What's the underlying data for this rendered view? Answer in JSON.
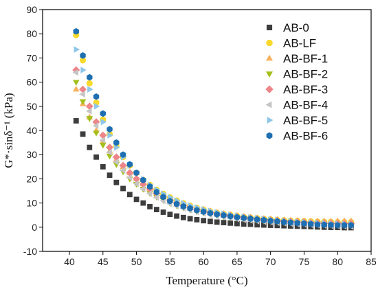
{
  "chart_data": {
    "type": "scatter",
    "title": "",
    "xlabel": "Temperature (°C)",
    "ylabel": "G*·sinδ⁻¹ (kPa)",
    "xlim": [
      36,
      85
    ],
    "ylim": [
      -10,
      90
    ],
    "xticks": [
      40,
      45,
      50,
      55,
      60,
      65,
      70,
      75,
      80,
      85
    ],
    "yticks": [
      -10,
      0,
      10,
      20,
      30,
      40,
      50,
      60,
      70,
      80,
      90
    ],
    "grid": false,
    "legend_position": "top-right",
    "x": [
      41,
      42,
      43,
      44,
      45,
      46,
      47,
      48,
      49,
      50,
      51,
      52,
      53,
      54,
      55,
      56,
      57,
      58,
      59,
      60,
      61,
      62,
      63,
      64,
      65,
      66,
      67,
      68,
      69,
      70,
      71,
      72,
      73,
      74,
      75,
      76,
      77,
      78,
      79,
      80,
      81,
      82
    ],
    "series": [
      {
        "name": "AB-0",
        "color": "#3d3d3d",
        "marker": "square",
        "values": [
          44,
          38.5,
          33,
          29,
          25,
          21.5,
          18.5,
          16,
          13.5,
          11.5,
          10,
          8.5,
          7.3,
          6.2,
          5.3,
          4.6,
          4,
          3.5,
          3.1,
          2.7,
          2.4,
          2.1,
          1.9,
          1.7,
          1.5,
          1.3,
          1.2,
          1,
          0.9,
          0.8,
          0.7,
          0.6,
          0.5,
          0.4,
          0.3,
          0.2,
          0.1,
          0,
          -0.1,
          -0.1,
          -0.2,
          -0.2
        ]
      },
      {
        "name": "AB-LF",
        "color": "#f8d92c",
        "marker": "circle",
        "values": [
          79.5,
          69,
          59.5,
          51.5,
          44.5,
          38.5,
          33.5,
          29,
          25.5,
          22.5,
          19.5,
          17.5,
          15.5,
          13.8,
          12.3,
          11,
          9.9,
          8.9,
          8,
          7.3,
          6.6,
          6,
          5.5,
          5.1,
          4.7,
          4.3,
          4,
          3.7,
          3.5,
          3.2,
          3,
          2.9,
          2.7,
          2.6,
          2.5,
          2.4,
          2.3,
          2.2,
          2.2,
          2.1,
          2.1,
          2.1
        ]
      },
      {
        "name": "AB-BF-1",
        "color": "#f8b15e",
        "marker": "triangle-up",
        "values": [
          57,
          51,
          45.5,
          40,
          35.5,
          31.5,
          28,
          25,
          22.5,
          20,
          18,
          16,
          14.5,
          13,
          11.8,
          10.7,
          9.7,
          8.8,
          8,
          7.3,
          6.7,
          6.1,
          5.6,
          5.2,
          4.8,
          4.4,
          4.1,
          3.8,
          3.5,
          3.3,
          3.1,
          2.9,
          2.8,
          2.7,
          2.6,
          2.5,
          2.5,
          2.5,
          2.5,
          2.5,
          2.6,
          2.6
        ]
      },
      {
        "name": "AB-BF-2",
        "color": "#a3bf1a",
        "marker": "triangle-down",
        "values": [
          60,
          52,
          45,
          39,
          34,
          29.5,
          26,
          23,
          20,
          17.8,
          15.8,
          14,
          12.5,
          11.1,
          9.9,
          8.9,
          8,
          7.2,
          6.5,
          5.9,
          5.4,
          4.9,
          4.5,
          4.1,
          3.8,
          3.5,
          3.2,
          3,
          2.7,
          2.5,
          2.3,
          2.1,
          2,
          1.8,
          1.7,
          1.6,
          1.5,
          1.4,
          1.3,
          1.3,
          1.2,
          1.2
        ]
      },
      {
        "name": "AB-BF-3",
        "color": "#ee8588",
        "marker": "diamond",
        "values": [
          65,
          57,
          50,
          43.5,
          38,
          33,
          29,
          25.5,
          22.5,
          20,
          17.8,
          15.8,
          14,
          12.5,
          11.2,
          10,
          9,
          8.1,
          7.3,
          6.6,
          6,
          5.5,
          5,
          4.6,
          4.2,
          3.9,
          3.6,
          3.3,
          3.1,
          2.9,
          2.7,
          2.5,
          2.3,
          2.1,
          2,
          1.8,
          1.7,
          1.6,
          1.5,
          1.5,
          1.4,
          1.4
        ]
      },
      {
        "name": "AB-BF-4",
        "color": "#c5c5c5",
        "marker": "triangle-left",
        "values": [
          64,
          55,
          48,
          42,
          36,
          31,
          27,
          23.5,
          20.5,
          18,
          15.8,
          13.9,
          12.3,
          10.9,
          9.7,
          8.7,
          7.8,
          7,
          6.3,
          5.7,
          5.1,
          4.6,
          4.2,
          3.8,
          3.4,
          3.1,
          2.8,
          2.5,
          2.3,
          2.1,
          1.9,
          1.7,
          1.5,
          1.3,
          1.2,
          1,
          0.9,
          0.7,
          0.6,
          0.5,
          0.4,
          0.3
        ]
      },
      {
        "name": "AB-BF-5",
        "color": "#8ec6ea",
        "marker": "triangle-right",
        "values": [
          73.5,
          65,
          57,
          50,
          43.5,
          38,
          33,
          29,
          25.5,
          22.5,
          19.8,
          17.5,
          15.5,
          13.8,
          12.3,
          11,
          9.9,
          8.9,
          8.1,
          7.3,
          6.7,
          6.1,
          5.6,
          5.1,
          4.7,
          4.3,
          4,
          3.7,
          3.4,
          3.1,
          2.9,
          2.6,
          2.4,
          2.2,
          2,
          1.9,
          1.7,
          1.6,
          1.5,
          1.4,
          1.3,
          1.2
        ]
      },
      {
        "name": "AB-BF-6",
        "color": "#1d6fb1",
        "marker": "hexagon",
        "values": [
          81,
          71,
          62,
          54,
          47,
          40.5,
          35,
          30,
          26,
          22.5,
          19.5,
          16.8,
          14.5,
          12.5,
          10.8,
          9.6,
          8.6,
          7.8,
          7,
          6.4,
          5.8,
          5.3,
          4.9,
          4.5,
          4.1,
          3.8,
          3.5,
          3.2,
          2.9,
          2.6,
          2.4,
          2.1,
          1.9,
          1.7,
          1.5,
          1.3,
          1.1,
          1,
          0.9,
          0.8,
          0.8,
          0.8
        ]
      }
    ]
  }
}
